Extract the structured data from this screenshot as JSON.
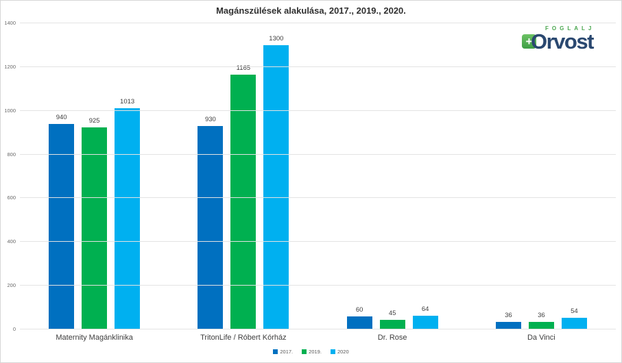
{
  "chart_data": {
    "type": "bar",
    "title": "Magánszülések alakulása, 2017., 2019., 2020.",
    "categories": [
      "Maternity Magánklinika",
      "TritonLife / Róbert Kórház",
      "Dr. Rose",
      "Da Vinci"
    ],
    "series": [
      {
        "name": "2017.",
        "color": "#0070C0",
        "values": [
          940,
          930,
          60,
          36
        ]
      },
      {
        "name": "2019.",
        "color": "#00B050",
        "values": [
          925,
          1165,
          45,
          36
        ]
      },
      {
        "name": "2020",
        "color": "#00B0F0",
        "values": [
          1013,
          1300,
          64,
          54
        ]
      }
    ],
    "ylim": [
      0,
      1400
    ],
    "ytick_step": 200,
    "yticks": [
      "0",
      "200",
      "400",
      "600",
      "800",
      "1000",
      "1200",
      "1400"
    ],
    "grid": true,
    "legend_position": "bottom",
    "value_labels": true
  },
  "logo": {
    "top_text": "FOGLALJ",
    "main_text": "Orvost",
    "plus_glyph": "+",
    "green": "#49a64e",
    "navy": "#2a4870"
  }
}
